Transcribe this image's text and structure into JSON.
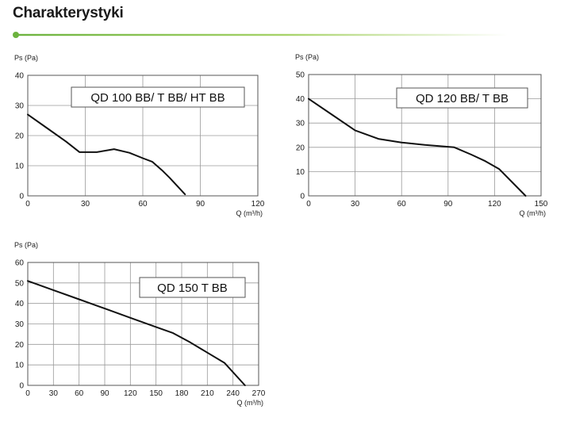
{
  "page": {
    "title": "Charakterystyki",
    "accent": "#8cc63f"
  },
  "chart_data": [
    {
      "type": "line",
      "title": "QD 100 BB/ T BB/ HT BB",
      "xlabel": "Q (m³/h)",
      "ylabel": "Ps (Pa)",
      "xlim": [
        0,
        120
      ],
      "ylim": [
        0,
        40
      ],
      "xticks": [
        0,
        30,
        60,
        90,
        120
      ],
      "yticks": [
        0,
        10,
        20,
        30,
        40
      ],
      "grid": true,
      "series": [
        {
          "x": [
            0,
            10,
            20,
            27,
            36,
            45,
            53,
            60,
            65,
            70,
            74,
            82
          ],
          "y": [
            27,
            22.5,
            18,
            14.5,
            14.5,
            15.5,
            14.3,
            12.5,
            11.3,
            8.5,
            6,
            0.5
          ]
        }
      ]
    },
    {
      "type": "line",
      "title": "QD 120 BB/ T BB",
      "xlabel": "Q (m³/h)",
      "ylabel": "Ps (Pa)",
      "xlim": [
        0,
        150
      ],
      "ylim": [
        0,
        50
      ],
      "xticks": [
        0,
        30,
        60,
        90,
        120,
        150
      ],
      "yticks": [
        0,
        10,
        20,
        30,
        40,
        50
      ],
      "grid": true,
      "series": [
        {
          "x": [
            0,
            15,
            30,
            45,
            60,
            75,
            94,
            105,
            114,
            123,
            140
          ],
          "y": [
            40,
            33.5,
            27,
            23.5,
            22,
            21,
            20,
            17,
            14.3,
            11,
            0
          ]
        }
      ]
    },
    {
      "type": "line",
      "title": "QD 150 T BB",
      "xlabel": "Q (m³/h)",
      "ylabel": "Ps (Pa)",
      "xlim": [
        0,
        270
      ],
      "ylim": [
        0,
        60
      ],
      "xticks": [
        0,
        30,
        60,
        90,
        120,
        150,
        180,
        210,
        240,
        270
      ],
      "yticks": [
        0,
        10,
        20,
        30,
        40,
        50,
        60
      ],
      "grid": true,
      "series": [
        {
          "x": [
            0,
            30,
            60,
            90,
            120,
            150,
            170,
            190,
            210,
            230,
            254
          ],
          "y": [
            51,
            46.5,
            42,
            37.5,
            33,
            28.5,
            25.5,
            21,
            16,
            11,
            0
          ]
        }
      ]
    }
  ]
}
